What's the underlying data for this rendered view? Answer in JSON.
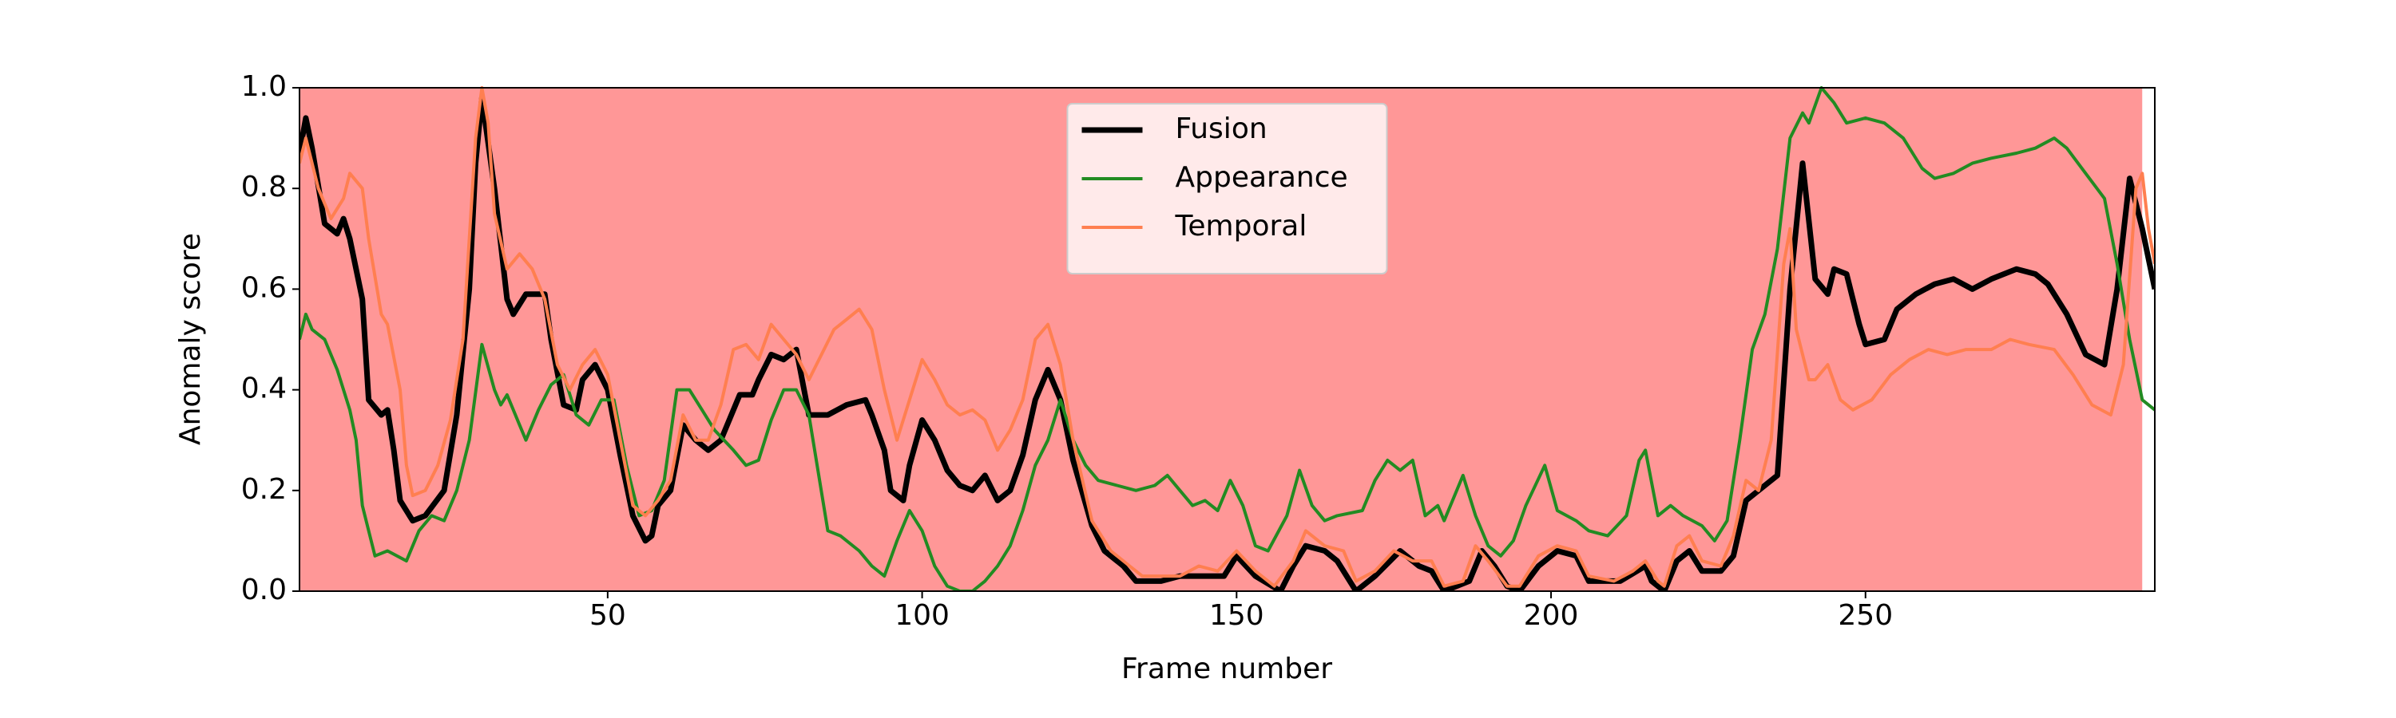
{
  "chart_data": {
    "type": "line",
    "xlabel": "Frame number",
    "ylabel": "Anomaly score",
    "xlim": [
      1,
      296
    ],
    "ylim": [
      0,
      1
    ],
    "xticks": [
      50,
      100,
      150,
      200,
      250
    ],
    "yticks": [
      {
        "value": 0,
        "label": "0.0"
      },
      {
        "value": 0.2,
        "label": "0.2"
      },
      {
        "value": 0.4,
        "label": "0.4"
      },
      {
        "value": 0.6,
        "label": "0.6"
      },
      {
        "value": 0.8,
        "label": "0.8"
      },
      {
        "value": 1,
        "label": "1.0"
      }
    ],
    "legend": "upper center",
    "shaded_span": {
      "start": 1,
      "end": 294,
      "color": "#ff9797"
    },
    "series": [
      {
        "name": "Fusion",
        "color": "#000000",
        "width": 7,
        "x": [
          1,
          2,
          3,
          5,
          7,
          8,
          9,
          11,
          12,
          14,
          15,
          16,
          17,
          19,
          21,
          24,
          26,
          28,
          29,
          30,
          32,
          34,
          35,
          37,
          40,
          41,
          43,
          45,
          46,
          48,
          50,
          52,
          54,
          56,
          57,
          58,
          60,
          62,
          64,
          66,
          68,
          71,
          73,
          74,
          76,
          78,
          80,
          82,
          85,
          88,
          91,
          92,
          94,
          95,
          97,
          98,
          100,
          102,
          104,
          106,
          108,
          110,
          112,
          114,
          116,
          118,
          120,
          122,
          124,
          127,
          129,
          132,
          134,
          138,
          141,
          145,
          148,
          150,
          153,
          157,
          159,
          161,
          164,
          166,
          169,
          172,
          176,
          179,
          181,
          183,
          187,
          189,
          191,
          193,
          195,
          198,
          201,
          204,
          206,
          211,
          215,
          216,
          218,
          220,
          222,
          224,
          227,
          229,
          231,
          233,
          236,
          238,
          240,
          242,
          244,
          245,
          247,
          249,
          250,
          253,
          255,
          258,
          261,
          264,
          267,
          270,
          274,
          277,
          279,
          282,
          285,
          288,
          290,
          292,
          294,
          296
        ],
        "values": [
          0.87,
          0.94,
          0.88,
          0.73,
          0.71,
          0.74,
          0.7,
          0.58,
          0.38,
          0.35,
          0.36,
          0.28,
          0.18,
          0.14,
          0.15,
          0.2,
          0.35,
          0.6,
          0.85,
          0.98,
          0.8,
          0.58,
          0.55,
          0.59,
          0.59,
          0.5,
          0.37,
          0.36,
          0.42,
          0.45,
          0.4,
          0.27,
          0.15,
          0.1,
          0.11,
          0.17,
          0.2,
          0.33,
          0.3,
          0.28,
          0.3,
          0.39,
          0.39,
          0.42,
          0.47,
          0.46,
          0.48,
          0.35,
          0.35,
          0.37,
          0.38,
          0.35,
          0.28,
          0.2,
          0.18,
          0.25,
          0.34,
          0.3,
          0.24,
          0.21,
          0.2,
          0.23,
          0.18,
          0.2,
          0.27,
          0.38,
          0.44,
          0.38,
          0.26,
          0.13,
          0.08,
          0.05,
          0.02,
          0.02,
          0.03,
          0.03,
          0.03,
          0.07,
          0.03,
          0.0,
          0.05,
          0.09,
          0.08,
          0.06,
          0.0,
          0.03,
          0.08,
          0.05,
          0.04,
          0.0,
          0.02,
          0.08,
          0.05,
          0.01,
          0.0,
          0.05,
          0.08,
          0.07,
          0.02,
          0.02,
          0.05,
          0.02,
          0.0,
          0.06,
          0.08,
          0.04,
          0.04,
          0.07,
          0.18,
          0.2,
          0.23,
          0.6,
          0.85,
          0.62,
          0.59,
          0.64,
          0.63,
          0.53,
          0.49,
          0.5,
          0.56,
          0.59,
          0.61,
          0.62,
          0.6,
          0.62,
          0.64,
          0.63,
          0.61,
          0.55,
          0.47,
          0.45,
          0.6,
          0.82,
          0.72,
          0.6
        ]
      },
      {
        "name": "Appearance",
        "color": "#228b22",
        "width": 4,
        "x": [
          1,
          2,
          3,
          5,
          7,
          9,
          10,
          11,
          12,
          13,
          15,
          18,
          20,
          22,
          24,
          26,
          28,
          30,
          32,
          33,
          34,
          36,
          37,
          39,
          41,
          43,
          45,
          47,
          49,
          51,
          53,
          55,
          57,
          59,
          61,
          63,
          65,
          67,
          70,
          72,
          74,
          76,
          78,
          80,
          82,
          85,
          87,
          90,
          92,
          94,
          96,
          98,
          100,
          102,
          104,
          106,
          108,
          110,
          112,
          114,
          116,
          118,
          120,
          122,
          124,
          126,
          128,
          131,
          134,
          137,
          139,
          141,
          143,
          145,
          147,
          149,
          151,
          153,
          155,
          158,
          160,
          162,
          164,
          166,
          170,
          172,
          174,
          176,
          178,
          180,
          182,
          183,
          186,
          188,
          190,
          192,
          194,
          196,
          199,
          201,
          204,
          206,
          209,
          212,
          214,
          215,
          217,
          219,
          221,
          224,
          226,
          228,
          230,
          232,
          234,
          236,
          238,
          240,
          241,
          243,
          245,
          247,
          250,
          253,
          256,
          259,
          261,
          264,
          267,
          270,
          274,
          277,
          280,
          282,
          285,
          288,
          290,
          292,
          294,
          296
        ],
        "values": [
          0.5,
          0.55,
          0.52,
          0.5,
          0.44,
          0.36,
          0.3,
          0.17,
          0.12,
          0.07,
          0.08,
          0.06,
          0.12,
          0.15,
          0.14,
          0.2,
          0.3,
          0.49,
          0.4,
          0.37,
          0.39,
          0.33,
          0.3,
          0.36,
          0.41,
          0.43,
          0.35,
          0.33,
          0.38,
          0.38,
          0.25,
          0.15,
          0.16,
          0.22,
          0.4,
          0.4,
          0.36,
          0.32,
          0.28,
          0.25,
          0.26,
          0.34,
          0.4,
          0.4,
          0.35,
          0.12,
          0.11,
          0.08,
          0.05,
          0.03,
          0.1,
          0.16,
          0.12,
          0.05,
          0.01,
          0.0,
          0.0,
          0.02,
          0.05,
          0.09,
          0.16,
          0.25,
          0.3,
          0.38,
          0.3,
          0.25,
          0.22,
          0.21,
          0.2,
          0.21,
          0.23,
          0.2,
          0.17,
          0.18,
          0.16,
          0.22,
          0.17,
          0.09,
          0.08,
          0.15,
          0.24,
          0.17,
          0.14,
          0.15,
          0.16,
          0.22,
          0.26,
          0.24,
          0.26,
          0.15,
          0.17,
          0.14,
          0.23,
          0.15,
          0.09,
          0.07,
          0.1,
          0.17,
          0.25,
          0.16,
          0.14,
          0.12,
          0.11,
          0.15,
          0.26,
          0.28,
          0.15,
          0.17,
          0.15,
          0.13,
          0.1,
          0.14,
          0.3,
          0.48,
          0.55,
          0.68,
          0.9,
          0.95,
          0.93,
          1.0,
          0.97,
          0.93,
          0.94,
          0.93,
          0.9,
          0.84,
          0.82,
          0.83,
          0.85,
          0.86,
          0.87,
          0.88,
          0.9,
          0.88,
          0.83,
          0.78,
          0.65,
          0.5,
          0.38,
          0.36
        ]
      },
      {
        "name": "Temporal",
        "color": "#ff7f50",
        "width": 4,
        "x": [
          1,
          2,
          4,
          6,
          8,
          9,
          11,
          12,
          14,
          15,
          17,
          18,
          19,
          21,
          23,
          25,
          27,
          29,
          30,
          31,
          32,
          34,
          36,
          38,
          40,
          42,
          44,
          46,
          48,
          50,
          52,
          54,
          56,
          58,
          60,
          62,
          64,
          66,
          68,
          70,
          72,
          74,
          76,
          78,
          80,
          82,
          84,
          86,
          88,
          90,
          92,
          94,
          96,
          98,
          100,
          102,
          104,
          106,
          108,
          110,
          112,
          114,
          116,
          118,
          120,
          122,
          124,
          127,
          130,
          133,
          135,
          138,
          141,
          144,
          147,
          150,
          153,
          156,
          159,
          161,
          164,
          167,
          169,
          172,
          175,
          178,
          181,
          183,
          186,
          188,
          190,
          193,
          195,
          198,
          201,
          204,
          206,
          210,
          213,
          215,
          217,
          218,
          220,
          222,
          224,
          227,
          229,
          231,
          233,
          235,
          237,
          238,
          239,
          241,
          242,
          244,
          246,
          248,
          251,
          254,
          257,
          260,
          263,
          266,
          270,
          273,
          276,
          280,
          283,
          286,
          289,
          291,
          293,
          294,
          295,
          296
        ],
        "values": [
          0.85,
          0.9,
          0.8,
          0.74,
          0.78,
          0.83,
          0.8,
          0.7,
          0.55,
          0.53,
          0.4,
          0.25,
          0.19,
          0.2,
          0.25,
          0.34,
          0.5,
          0.9,
          1.0,
          0.93,
          0.75,
          0.64,
          0.67,
          0.64,
          0.58,
          0.45,
          0.4,
          0.45,
          0.48,
          0.43,
          0.3,
          0.17,
          0.15,
          0.18,
          0.22,
          0.35,
          0.3,
          0.3,
          0.37,
          0.48,
          0.49,
          0.46,
          0.53,
          0.5,
          0.47,
          0.42,
          0.47,
          0.52,
          0.54,
          0.56,
          0.52,
          0.4,
          0.3,
          0.38,
          0.46,
          0.42,
          0.37,
          0.35,
          0.36,
          0.34,
          0.28,
          0.32,
          0.38,
          0.5,
          0.53,
          0.45,
          0.3,
          0.14,
          0.08,
          0.05,
          0.03,
          0.03,
          0.03,
          0.05,
          0.04,
          0.08,
          0.04,
          0.01,
          0.06,
          0.12,
          0.09,
          0.08,
          0.02,
          0.04,
          0.08,
          0.06,
          0.06,
          0.01,
          0.02,
          0.09,
          0.06,
          0.01,
          0.01,
          0.07,
          0.09,
          0.08,
          0.03,
          0.02,
          0.04,
          0.06,
          0.02,
          0.01,
          0.09,
          0.11,
          0.06,
          0.05,
          0.11,
          0.22,
          0.2,
          0.3,
          0.65,
          0.72,
          0.52,
          0.42,
          0.42,
          0.45,
          0.38,
          0.36,
          0.38,
          0.43,
          0.46,
          0.48,
          0.47,
          0.48,
          0.48,
          0.5,
          0.49,
          0.48,
          0.43,
          0.37,
          0.35,
          0.45,
          0.8,
          0.83,
          0.72,
          0.65
        ]
      }
    ]
  }
}
